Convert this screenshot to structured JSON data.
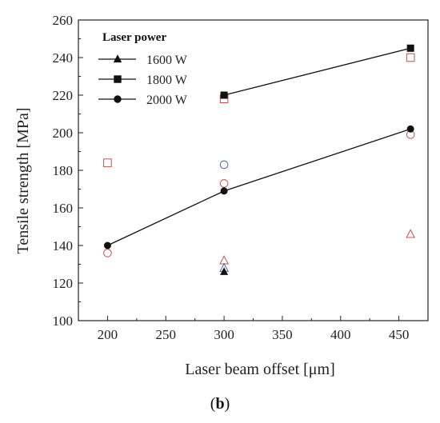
{
  "caption": {
    "open": "(",
    "letter": "b",
    "close": ")"
  },
  "chart_data": {
    "type": "scatter",
    "xlabel": "Laser beam offset  [μm]",
    "ylabel": "Tensile strength  [MPa]",
    "xlim": [
      175,
      475
    ],
    "ylim": [
      100,
      260
    ],
    "xticks": [
      200,
      250,
      300,
      350,
      400,
      450
    ],
    "yticks": [
      100,
      120,
      140,
      160,
      180,
      200,
      220,
      240,
      260
    ],
    "legend": {
      "title": "Laser power",
      "placement": "top-left",
      "entries": [
        {
          "label": "1600 W",
          "marker": "triangle"
        },
        {
          "label": "1800 W",
          "marker": "square"
        },
        {
          "label": "2000 W",
          "marker": "circle"
        }
      ]
    },
    "series": [
      {
        "name": "1600 W",
        "marker": "triangle",
        "filled": true,
        "line": false,
        "points": [
          [
            300,
            126
          ]
        ]
      },
      {
        "name": "1800 W",
        "marker": "square",
        "filled": true,
        "line": true,
        "points": [
          [
            300,
            220
          ],
          [
            460,
            245
          ]
        ]
      },
      {
        "name": "2000 W",
        "marker": "circle",
        "filled": true,
        "line": true,
        "points": [
          [
            200,
            140
          ],
          [
            300,
            169
          ],
          [
            460,
            202
          ]
        ]
      }
    ],
    "individual_samples": [
      {
        "marker": "triangle",
        "color": "#c0504d",
        "points": [
          [
            300,
            132
          ],
          [
            460,
            146
          ]
        ]
      },
      {
        "marker": "triangle",
        "color": "#4a5fb0",
        "points": [
          [
            300,
            128
          ]
        ]
      },
      {
        "marker": "square",
        "color": "#c0504d",
        "points": [
          [
            200,
            184
          ],
          [
            300,
            218
          ],
          [
            460,
            240
          ]
        ]
      },
      {
        "marker": "circle",
        "color": "#c0504d",
        "points": [
          [
            200,
            136
          ],
          [
            300,
            173
          ],
          [
            460,
            199
          ]
        ]
      },
      {
        "marker": "circle",
        "color": "#4a5fb0",
        "points": [
          [
            300,
            183
          ]
        ]
      }
    ],
    "grid": false
  }
}
